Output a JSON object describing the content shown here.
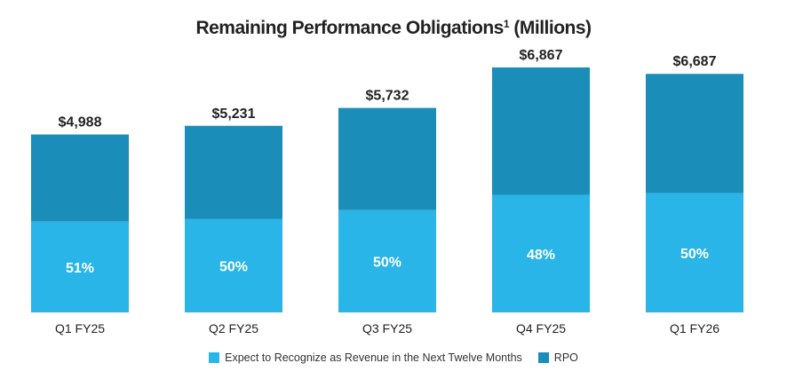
{
  "chart_data": {
    "type": "bar",
    "stacked": true,
    "title": "Remaining Performance Obligations",
    "title_superscript": "1",
    "title_suffix": "(Millions)",
    "categories": [
      "Q1 FY25",
      "Q2 FY25",
      "Q3 FY25",
      "Q4 FY25",
      "Q1 FY26"
    ],
    "totals": [
      4988,
      5231,
      5732,
      6867,
      6687
    ],
    "total_labels": [
      "$4,988",
      "$5,231",
      "$5,732",
      "$6,867",
      "$6,687"
    ],
    "percent_next_twelve_months": [
      51,
      50,
      50,
      48,
      50
    ],
    "percent_labels": [
      "51%",
      "50%",
      "50%",
      "48%",
      "50%"
    ],
    "series": [
      {
        "name": "Expect to Recognize as Revenue in the Next Twelve Months",
        "color": "#29b5e8"
      },
      {
        "name": "RPO",
        "color": "#1a8db8"
      }
    ],
    "ylim": [
      0,
      7200
    ],
    "grid": false,
    "legend_position": "bottom-center"
  }
}
